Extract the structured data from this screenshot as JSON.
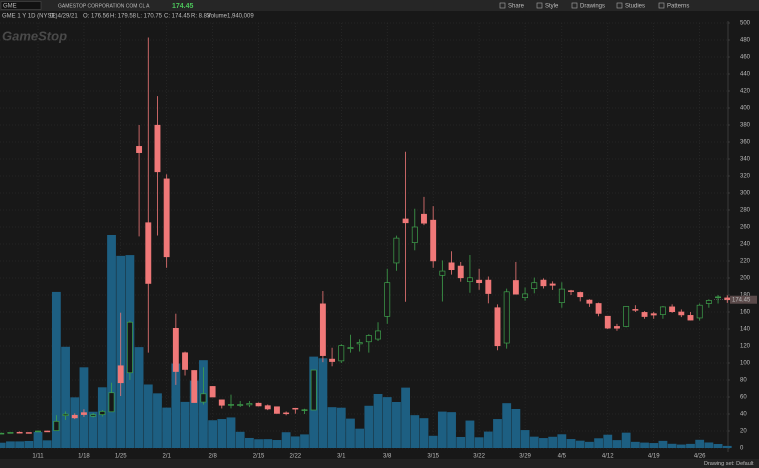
{
  "header": {
    "symbol": "GME",
    "company": "GAMESTOP CORPORATION COM CL A",
    "last": "174.45",
    "toolbar": [
      "Share",
      "Style",
      "Drawings",
      "Studies",
      "Patterns"
    ],
    "chart_label": "GME 1 Y 1D (NYSE)",
    "date": "D: 4/29/21",
    "open": "O: 176.56",
    "high": "H: 179.58",
    "low": "L: 170.75",
    "close": "C: 174.45",
    "range": "R: 8.83",
    "volume_label": "Volume",
    "volume_value": "1,940,009"
  },
  "chart_data": {
    "type": "candlestick",
    "watermark": "GameStop",
    "categories": [
      null,
      null,
      null,
      null,
      "1/11",
      null,
      null,
      null,
      null,
      "1/18",
      null,
      null,
      null,
      "1/25",
      null,
      null,
      null,
      null,
      "2/1",
      null,
      null,
      null,
      null,
      "2/8",
      null,
      null,
      null,
      null,
      "2/15",
      null,
      null,
      null,
      "2/22",
      null,
      null,
      null,
      null,
      "3/1",
      null,
      null,
      null,
      null,
      "3/8",
      null,
      null,
      null,
      null,
      "3/15",
      null,
      null,
      null,
      null,
      "3/22",
      null,
      null,
      null,
      null,
      "3/29",
      null,
      null,
      null,
      "4/5",
      null,
      null,
      null,
      null,
      "4/12",
      null,
      null,
      null,
      null,
      "4/19",
      null,
      null,
      null,
      null,
      "4/26",
      null,
      null,
      null
    ],
    "open": [
      17.35,
      17.34,
      18.47,
      18.18,
      19.41,
      19.96,
      20.42,
      38.09,
      38.49,
      41.55,
      37.37,
      39.23,
      42.59,
      96.73,
      88.56,
      354.83,
      265,
      379.71,
      316.56,
      140.76,
      112.01,
      91.19,
      54.04,
      72.41,
      56.61,
      50.77,
      50.01,
      50.75,
      52.66,
      49.77,
      48.49,
      41.28,
      46.69,
      44.97,
      44.7,
      169.56,
      104.54,
      102.5,
      116.93,
      122.5,
      125,
      128.17,
      154.89,
      217.71,
      269.43,
      241.64,
      275,
      268,
      203.16,
      217.84,
      214,
      195.73,
      197.45,
      197.5,
      165.01,
      123.49,
      197.06,
      176.9,
      187.5,
      197.5,
      193,
      171,
      185,
      183,
      174,
      170,
      155,
      143,
      143,
      163,
      159.5,
      158,
      157,
      166,
      160,
      156,
      153,
      170,
      177,
      176.56
    ],
    "high": [
      18.08,
      18.98,
      19.45,
      18.3,
      20.65,
      20.4,
      38.65,
      43.06,
      40.75,
      45.52,
      41.19,
      44.75,
      76.76,
      159.18,
      150,
      380,
      483,
      413.98,
      322,
      158,
      113.4,
      91.5,
      95,
      72.66,
      57,
      62.83,
      55.32,
      55.24,
      53.5,
      51.19,
      48.87,
      43,
      46.9,
      46.23,
      91.71,
      184.68,
      118,
      122,
      133.2,
      127.9,
      133.9,
      147.87,
      210.87,
      249.85,
      348.5,
      281.5,
      295.5,
      284.52,
      220.7,
      231.47,
      218.88,
      227,
      210.87,
      201.75,
      169,
      187.5,
      218.88,
      188.88,
      200.5,
      199.5,
      196,
      195,
      186,
      183.98,
      175,
      171,
      155,
      146,
      167,
      168,
      161,
      160,
      167,
      169,
      163,
      160,
      170,
      175,
      180,
      179.58
    ],
    "low": [
      17.23,
      17.33,
      18.02,
      17.08,
      19.01,
      19.32,
      20.03,
      33.05,
      34.01,
      36.64,
      36.06,
      37,
      42.32,
      61.13,
      80.2,
      249,
      112.25,
      250,
      212,
      74.22,
      85.25,
      53.33,
      51.09,
      60,
      46.52,
      46.55,
      48.22,
      48.05,
      49.04,
      44.56,
      40.5,
      38.5,
      40.39,
      40,
      44.7,
      101,
      96.23,
      100,
      112.2,
      113.51,
      112.2,
      125.86,
      146.1,
      208.51,
      172,
      232.6,
      262.27,
      212.01,
      172.35,
      204,
      195.65,
      182.66,
      186.1,
      170.21,
      115,
      116.9,
      181,
      173.36,
      182,
      187.72,
      186,
      165,
      180,
      172.5,
      166,
      155,
      140,
      138,
      142,
      160,
      152,
      152,
      152,
      159,
      154,
      150,
      150,
      165,
      170,
      170.75
    ],
    "close": [
      17.37,
      18.36,
      18.08,
      17.69,
      19.94,
      19.95,
      31.4,
      39.91,
      35.5,
      39.36,
      39.12,
      43.03,
      65.01,
      76.79,
      147.98,
      347.51,
      193.6,
      325,
      225,
      90,
      92.41,
      53.5,
      63.77,
      60,
      50.31,
      51.2,
      51.1,
      52.4,
      49.51,
      45.94,
      40.69,
      40.59,
      46,
      44.97,
      91.71,
      108.73,
      101.74,
      120.4,
      118.18,
      124.18,
      132.35,
      137.74,
      194.5,
      246.9,
      265,
      260,
      264.5,
      220.14,
      208.17,
      209.81,
      200.27,
      200.27,
      194.49,
      181.75,
      120.34,
      183.75,
      181,
      181.3,
      194.46,
      190.82,
      191.45,
      186.95,
      184.5,
      177.97,
      170.26,
      158.36,
      141.09,
      140.99,
      166.53,
      162.8,
      154.69,
      156.44,
      166,
      160.4,
      156.6,
      150.5,
      168,
      173.59,
      177.77,
      174.45
    ],
    "volume": [
      4.9,
      6.1,
      6.1,
      6.5,
      14.9,
      7.1,
      144.5,
      93.7,
      46.9,
      74.7,
      33.6,
      56.2,
      197.2,
      177.9,
      178.6,
      93.4,
      58.8,
      50.6,
      37.4,
      78.2,
      42.7,
      62.4,
      81.3,
      25.7,
      26.8,
      28.3,
      15,
      9.3,
      8.1,
      8.2,
      7.4,
      14.6,
      10.7,
      12.6,
      84.6,
      83.1,
      37.8,
      37.3,
      27.2,
      17.9,
      39.1,
      50,
      47.1,
      42.6,
      55.9,
      30.4,
      27.6,
      11.3,
      33.7,
      33.2,
      10.2,
      25.4,
      9.9,
      15.2,
      26.8,
      41.5,
      36.1,
      16.6,
      10.5,
      9.2,
      10.4,
      12.7,
      8.3,
      6.8,
      5.7,
      9,
      12.3,
      7.3,
      14.2,
      5.7,
      5,
      4.6,
      6.6,
      3.9,
      3.2,
      3.8,
      7.6,
      5.1,
      3.7,
      1.94
    ],
    "ylim": [
      0,
      500
    ],
    "yticks": [
      0,
      20,
      40,
      60,
      80,
      100,
      120,
      140,
      160,
      180,
      200,
      220,
      240,
      260,
      280,
      300,
      320,
      340,
      360,
      380,
      400,
      420,
      440,
      460,
      480,
      500
    ],
    "grid": true,
    "up_color": "#3fa34d",
    "down_color": "#f07878",
    "volume_color": "#1d5f82"
  },
  "footer": {
    "drawing_set": "Drawing set: Default"
  }
}
